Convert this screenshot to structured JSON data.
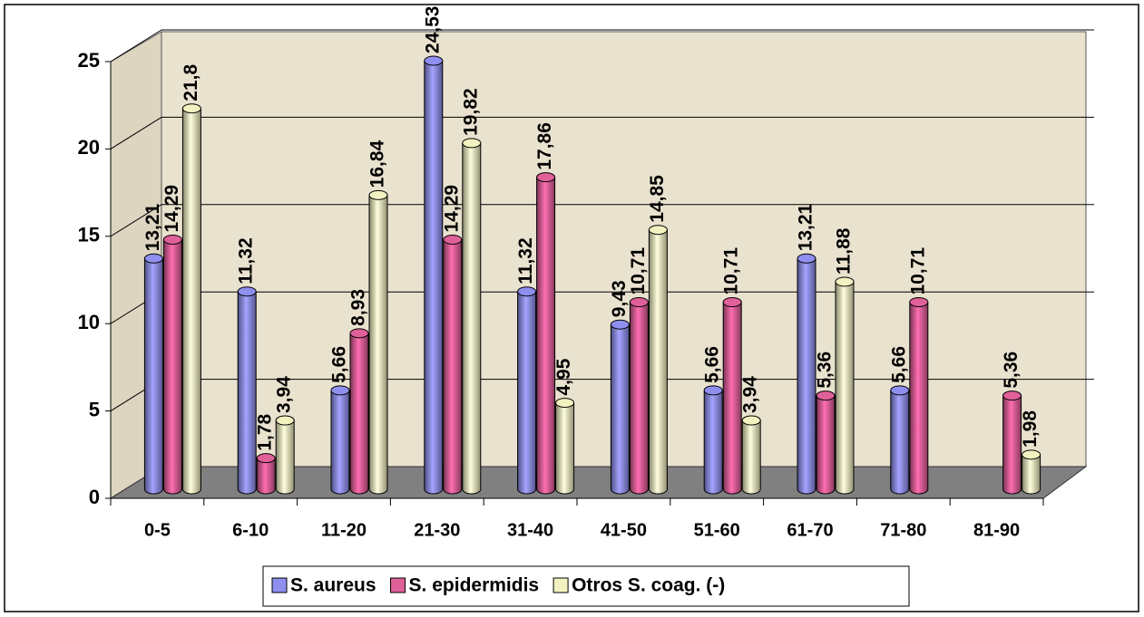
{
  "chart_data": {
    "type": "bar3d",
    "categories": [
      "0-5",
      "6-10",
      "11-20",
      "21-30",
      "31-40",
      "41-50",
      "51-60",
      "61-70",
      "71-80",
      "81-90"
    ],
    "series": [
      {
        "name": "S. aureus",
        "color": "#8f8ff0",
        "values": [
          13.21,
          11.32,
          5.66,
          24.53,
          11.32,
          9.43,
          5.66,
          13.21,
          5.66,
          null
        ],
        "value_labels": [
          "13,21",
          "11,32",
          "5,66",
          "24,53",
          "11,32",
          "9,43",
          "5,66",
          "13,21",
          "5,66",
          null
        ]
      },
      {
        "name": "S. epidermidis",
        "color": "#e0609a",
        "values": [
          14.29,
          1.78,
          8.93,
          14.29,
          17.86,
          10.71,
          10.71,
          5.36,
          10.71,
          5.36
        ],
        "value_labels": [
          "14,29",
          "1,78",
          "8,93",
          "14,29",
          "17,86",
          "10,71",
          "10,71",
          "5,36",
          "10,71",
          "5,36"
        ]
      },
      {
        "name": "Otros S. coag. (-)",
        "color": "#f2f2c0",
        "values": [
          21.8,
          3.94,
          16.84,
          19.82,
          4.95,
          14.85,
          3.94,
          11.88,
          null,
          1.98
        ],
        "value_labels": [
          "21,8",
          "3,94",
          "16,84",
          "19,82",
          "4,95",
          "14,85",
          "3,94",
          "11,88",
          null,
          "1,98"
        ]
      }
    ],
    "ylim": [
      0,
      25
    ],
    "yticks": [
      0,
      5,
      10,
      15,
      20,
      25
    ],
    "grid": true,
    "legend": "bottom"
  }
}
